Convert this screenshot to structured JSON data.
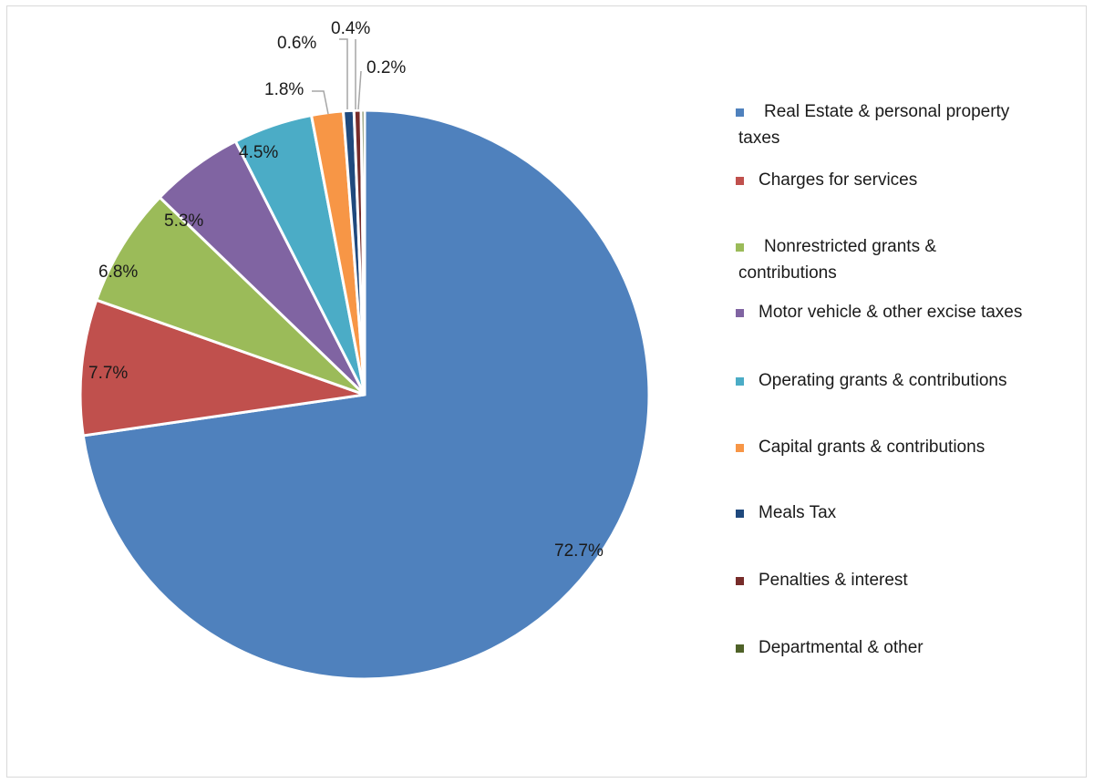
{
  "chart_data": {
    "type": "pie",
    "title": "",
    "slices": [
      {
        "label": "Real Estate & personal property taxes",
        "value": 72.7,
        "display": "72.7%",
        "color": "#4f81bd"
      },
      {
        "label": "Charges for services",
        "value": 7.7,
        "display": "7.7%",
        "color": "#c0504d"
      },
      {
        "label": "Nonrestricted grants & contributions",
        "value": 6.8,
        "display": "6.8%",
        "color": "#9bbb59"
      },
      {
        "label": "Motor vehicle & other excise taxes",
        "value": 5.3,
        "display": "5.3%",
        "color": "#8064a2"
      },
      {
        "label": "Operating grants & contributions",
        "value": 4.5,
        "display": "4.5%",
        "color": "#4bacc6"
      },
      {
        "label": "Capital grants & contributions",
        "value": 1.8,
        "display": "1.8%",
        "color": "#f79646"
      },
      {
        "label": "Meals Tax",
        "value": 0.6,
        "display": "0.6%",
        "color": "#1f497d"
      },
      {
        "label": "Penalties & interest",
        "value": 0.4,
        "display": "0.4%",
        "color": "#772c2a"
      },
      {
        "label": "Departmental & other",
        "value": 0.2,
        "display": "0.2%",
        "color": "#4f6228"
      }
    ],
    "legend_position": "right"
  }
}
